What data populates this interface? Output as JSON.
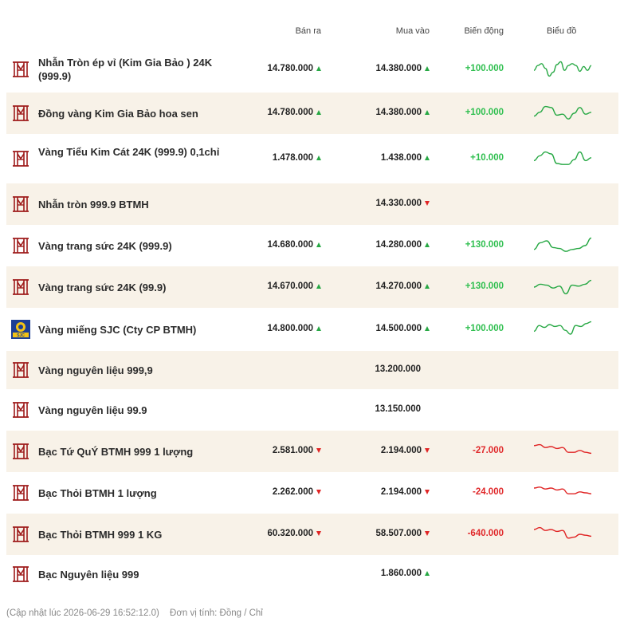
{
  "header": {
    "sell": "Bán ra",
    "buy": "Mua vào",
    "change": "Biến động",
    "chart": "Biểu đồ"
  },
  "colors": {
    "brand": "#9e1b1b",
    "up": "#27a844",
    "down": "#e02424",
    "pos_text": "#2fbf4f",
    "neg_text": "#e0282a",
    "row_alt": "#f8f2e8"
  },
  "rows": [
    {
      "name": "Nhẫn Tròn ép vỉ (Kim Gia Bảo ) 24K (999.9)",
      "sell": "14.780.000",
      "sell_dir": "up",
      "buy": "14.380.000",
      "buy_dir": "up",
      "change": "+100.000",
      "trend": "up",
      "logo": "btmh-logo",
      "spark": [
        0.55,
        0.3,
        0.2,
        0.45,
        0.85,
        0.65,
        0.25,
        0.1,
        0.55,
        0.3,
        0.2,
        0.3,
        0.6,
        0.35,
        0.55,
        0.3
      ],
      "alt": false,
      "height": 58,
      "two_line": true
    },
    {
      "name": "Đồng vàng Kim Gia Bảo hoa sen",
      "sell": "14.780.000",
      "sell_dir": "up",
      "buy": "14.380.000",
      "buy_dir": "up",
      "change": "+100.000",
      "trend": "up",
      "logo": "btmh-logo",
      "spark": [
        0.65,
        0.45,
        0.15,
        0.2,
        0.6,
        0.55,
        0.8,
        0.5,
        0.2,
        0.55,
        0.45
      ],
      "alt": true,
      "height": 52,
      "two_line": false
    },
    {
      "name": "Vàng Tiểu Kim Cát 24K (999.9) 0,1chỉ",
      "sell": "1.478.000",
      "sell_dir": "up",
      "buy": "1.438.000",
      "buy_dir": "up",
      "change": "+10.000",
      "trend": "up",
      "logo": "btmh-logo",
      "spark": [
        0.6,
        0.35,
        0.15,
        0.25,
        0.75,
        0.8,
        0.8,
        0.55,
        0.15,
        0.6,
        0.45
      ],
      "alt": false,
      "height": 62,
      "two_line": true
    },
    {
      "name": "Nhẫn tròn 999.9 BTMH",
      "sell": "",
      "sell_dir": "",
      "buy": "14.330.000",
      "buy_dir": "down",
      "change": "",
      "trend": "",
      "logo": "btmh-logo",
      "spark": [],
      "alt": true,
      "height": 52,
      "two_line": false
    },
    {
      "name": "Vàng trang sức 24K (999.9)",
      "sell": "14.680.000",
      "sell_dir": "up",
      "buy": "14.280.000",
      "buy_dir": "up",
      "change": "+130.000",
      "trend": "up",
      "logo": "btmh-logo",
      "spark": [
        0.7,
        0.35,
        0.25,
        0.6,
        0.65,
        0.8,
        0.7,
        0.65,
        0.5,
        0.1
      ],
      "alt": false,
      "height": 52,
      "two_line": false
    },
    {
      "name": "Vàng trang sức 24K (99.9)",
      "sell": "14.670.000",
      "sell_dir": "up",
      "buy": "14.270.000",
      "buy_dir": "up",
      "change": "+130.000",
      "trend": "up",
      "logo": "btmh-logo",
      "spark": [
        0.5,
        0.35,
        0.4,
        0.55,
        0.45,
        0.85,
        0.4,
        0.45,
        0.35,
        0.15
      ],
      "alt": true,
      "height": 52,
      "two_line": false
    },
    {
      "name": "Vàng miếng SJC (Cty CP BTMH)",
      "sell": "14.800.000",
      "sell_dir": "up",
      "buy": "14.500.000",
      "buy_dir": "up",
      "change": "+100.000",
      "trend": "up",
      "logo": "sjc-logo",
      "spark": [
        0.6,
        0.3,
        0.4,
        0.25,
        0.35,
        0.3,
        0.55,
        0.75,
        0.3,
        0.35,
        0.2,
        0.1
      ],
      "alt": false,
      "height": 54,
      "two_line": false
    },
    {
      "name": "Vàng nguyên liệu 999,9",
      "sell": "",
      "sell_dir": "",
      "buy": "13.200.000",
      "buy_dir": "",
      "change": "",
      "trend": "",
      "logo": "btmh-logo",
      "spark": [],
      "alt": true,
      "height": 48,
      "two_line": false
    },
    {
      "name": "Vàng nguyên liệu 99.9",
      "sell": "",
      "sell_dir": "",
      "buy": "13.150.000",
      "buy_dir": "",
      "change": "",
      "trend": "",
      "logo": "btmh-logo",
      "spark": [],
      "alt": false,
      "height": 52,
      "two_line": false
    },
    {
      "name": "Bạc Tứ QuÝ BTMH 999 1 lượng",
      "sell": "2.581.000",
      "sell_dir": "down",
      "buy": "2.194.000",
      "buy_dir": "down",
      "change": "-27.000",
      "trend": "down",
      "logo": "btmh-logo",
      "spark": [
        0.2,
        0.15,
        0.3,
        0.25,
        0.35,
        0.3,
        0.55,
        0.55,
        0.45,
        0.55,
        0.6
      ],
      "alt": true,
      "height": 52,
      "two_line": false
    },
    {
      "name": "Bạc Thỏi BTMH 1 lượng",
      "sell": "2.262.000",
      "sell_dir": "down",
      "buy": "2.194.000",
      "buy_dir": "down",
      "change": "-24.000",
      "trend": "down",
      "logo": "btmh-logo",
      "spark": [
        0.25,
        0.2,
        0.3,
        0.25,
        0.35,
        0.3,
        0.55,
        0.55,
        0.45,
        0.5,
        0.55
      ],
      "alt": false,
      "height": 52,
      "two_line": false
    },
    {
      "name": "Bạc Thỏi BTMH 999 1 KG",
      "sell": "60.320.000",
      "sell_dir": "down",
      "buy": "58.507.000",
      "buy_dir": "down",
      "change": "-640.000",
      "trend": "down",
      "logo": "btmh-logo",
      "spark": [
        0.25,
        0.15,
        0.3,
        0.25,
        0.35,
        0.3,
        0.7,
        0.65,
        0.5,
        0.55,
        0.6
      ],
      "alt": true,
      "height": 52,
      "two_line": false
    },
    {
      "name": "Bạc Nguyên liệu 999",
      "sell": "",
      "sell_dir": "",
      "buy": "1.860.000",
      "buy_dir": "up",
      "change": "",
      "trend": "",
      "logo": "btmh-logo",
      "spark": [],
      "alt": false,
      "height": 48,
      "two_line": false
    }
  ],
  "footer": {
    "updated": "(Cập nhật lúc 2026-06-29 16:52:12.0)",
    "unit": "Đơn vị tính: Đồng / Chỉ"
  }
}
